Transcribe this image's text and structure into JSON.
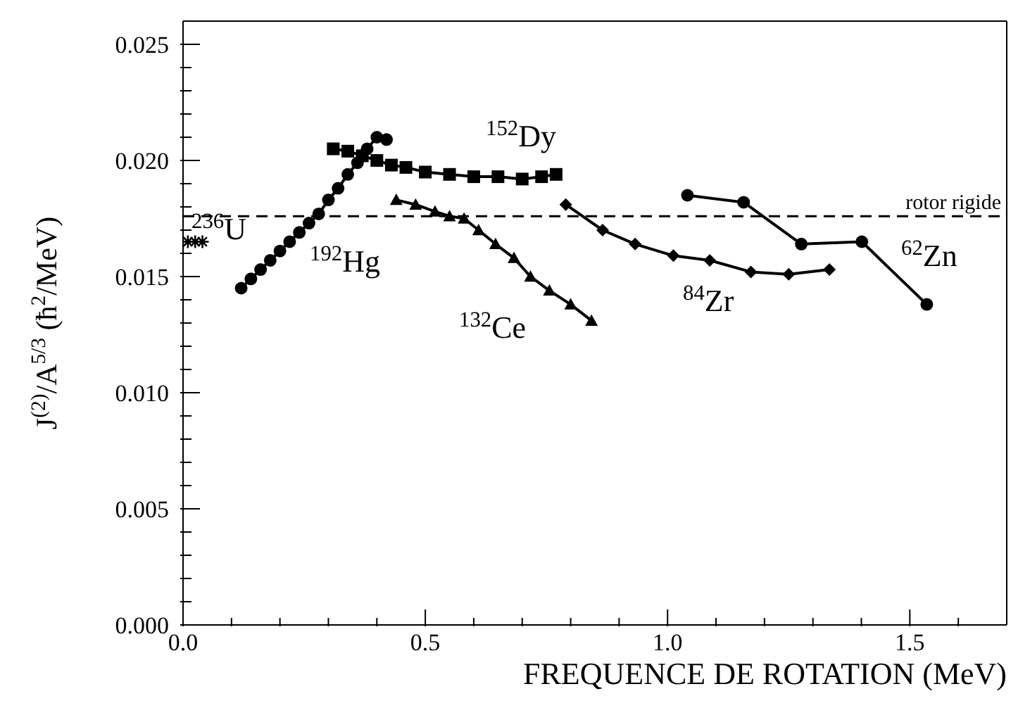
{
  "chart_data": {
    "type": "line",
    "xlabel": "FREQUENCE DE ROTATION (MeV)",
    "ylabel": "J$^{(2)}$/A$^{5/3}$ (ħ$^{2}$/MeV)",
    "xlim": [
      0,
      1.7
    ],
    "ylim": [
      0,
      0.026
    ],
    "xticks": [
      {
        "value": 0,
        "label": "0.0"
      },
      {
        "value": 0.1,
        "label": null
      },
      {
        "value": 0.2,
        "label": null
      },
      {
        "value": 0.3,
        "label": null
      },
      {
        "value": 0.4,
        "label": null
      },
      {
        "value": 0.5,
        "label": "0.5"
      },
      {
        "value": 0.6,
        "label": null
      },
      {
        "value": 0.7,
        "label": null
      },
      {
        "value": 0.8,
        "label": null
      },
      {
        "value": 0.9,
        "label": null
      },
      {
        "value": 1,
        "label": "1.0"
      },
      {
        "value": 1.1,
        "label": null
      },
      {
        "value": 1.2,
        "label": null
      },
      {
        "value": 1.3,
        "label": null
      },
      {
        "value": 1.4,
        "label": null
      },
      {
        "value": 1.5,
        "label": "1.5"
      },
      {
        "value": 1.6,
        "label": null
      }
    ],
    "yticks": [
      {
        "value": 0,
        "label": "0.000"
      },
      {
        "value": 0.001,
        "label": null
      },
      {
        "value": 0.002,
        "label": null
      },
      {
        "value": 0.003,
        "label": null
      },
      {
        "value": 0.004,
        "label": null
      },
      {
        "value": 0.005,
        "label": "0.005"
      },
      {
        "value": 0.006,
        "label": null
      },
      {
        "value": 0.007,
        "label": null
      },
      {
        "value": 0.008,
        "label": null
      },
      {
        "value": 0.009,
        "label": null
      },
      {
        "value": 0.01,
        "label": "0.010"
      },
      {
        "value": 0.011,
        "label": null
      },
      {
        "value": 0.012,
        "label": null
      },
      {
        "value": 0.013,
        "label": null
      },
      {
        "value": 0.014,
        "label": null
      },
      {
        "value": 0.015,
        "label": "0.015"
      },
      {
        "value": 0.016,
        "label": null
      },
      {
        "value": 0.017,
        "label": null
      },
      {
        "value": 0.018,
        "label": null
      },
      {
        "value": 0.019,
        "label": null
      },
      {
        "value": 0.02,
        "label": "0.020"
      },
      {
        "value": 0.021,
        "label": null
      },
      {
        "value": 0.022,
        "label": null
      },
      {
        "value": 0.023,
        "label": null
      },
      {
        "value": 0.024,
        "label": null
      },
      {
        "value": 0.025,
        "label": "0.025"
      }
    ],
    "grid": false,
    "series": [
      {
        "marker": "circle",
        "color": "#000000",
        "x": [
          0.12,
          0.14,
          0.16,
          0.18,
          0.2,
          0.22,
          0.24,
          0.26,
          0.28,
          0.3,
          0.32,
          0.34,
          0.36,
          0.38,
          0.4,
          0.42
        ],
        "values": [
          0.0145,
          0.0149,
          0.0153,
          0.0157,
          0.0161,
          0.0165,
          0.0169,
          0.0173,
          0.0177,
          0.0183,
          0.0188,
          0.0194,
          0.0199,
          0.0205,
          0.021,
          0.0209
        ]
      },
      {
        "marker": "square",
        "color": "#000000",
        "x": [
          0.31,
          0.34,
          0.37,
          0.4,
          0.43,
          0.46,
          0.5,
          0.55,
          0.6,
          0.65,
          0.7,
          0.74,
          0.77
        ],
        "values": [
          0.0205,
          0.0204,
          0.0202,
          0.02,
          0.0198,
          0.0197,
          0.0195,
          0.0194,
          0.0193,
          0.0193,
          0.0192,
          0.0193,
          0.0194
        ]
      },
      {
        "marker": "triangle",
        "color": "#000000",
        "x": [
          0.44,
          0.48,
          0.52,
          0.55,
          0.58,
          0.61,
          0.645,
          0.683,
          0.717,
          0.756,
          0.8,
          0.843
        ],
        "values": [
          0.0183,
          0.0181,
          0.0178,
          0.0176,
          0.0175,
          0.017,
          0.0164,
          0.0158,
          0.015,
          0.0144,
          0.0138,
          0.0131
        ]
      },
      {
        "marker": "diamond",
        "color": "#000000",
        "x": [
          0.79,
          0.866,
          0.933,
          1.012,
          1.087,
          1.172,
          1.25,
          1.334
        ],
        "values": [
          0.0181,
          0.017,
          0.0164,
          0.0159,
          0.0157,
          0.0152,
          0.0151,
          0.0153
        ]
      },
      {
        "marker": "circle",
        "color": "#000000",
        "x": [
          1.041,
          1.157,
          1.276,
          1.401,
          1.535
        ],
        "values": [
          0.0185,
          0.0182,
          0.0164,
          0.0165,
          0.0138
        ]
      },
      {
        "type": "scatter",
        "marker": "cross",
        "color": "#000000",
        "x": [
          0.01,
          0.025,
          0.04
        ],
        "values": [
          0.0165,
          0.0165,
          0.0165
        ]
      }
    ],
    "ref_lines": [
      {
        "axis": "y",
        "value": 0.0176,
        "label": "rotor rigide",
        "line_style": "dashed",
        "color": "#000000"
      }
    ],
    "annotations": [
      "$^{152}$Dy",
      "$^{192}$Hg",
      "$^{132}$Ce",
      "$^{84}$Zr",
      "$^{62}$Zn",
      "$^{236}$U"
    ]
  }
}
